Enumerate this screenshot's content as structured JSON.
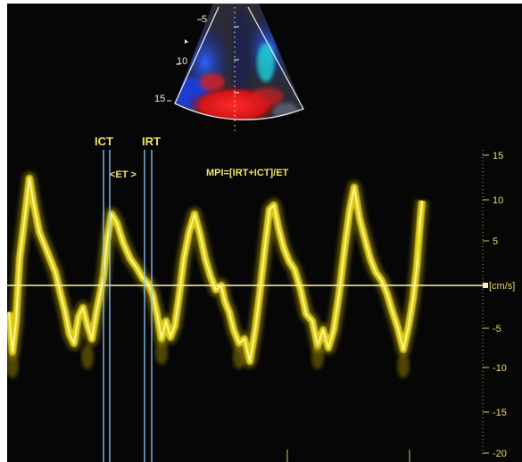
{
  "annotations": {
    "ict": "ICT",
    "irt": "IRT",
    "et": "<ET >",
    "formula": "MPI=[IRT+ICT]/ET"
  },
  "velocity_scale": {
    "unit_label": "[cm/s]",
    "ticks": [
      "15",
      "10",
      "5",
      "-5",
      "-10",
      "-15",
      "-20"
    ]
  },
  "sector_depth_ticks": [
    "5",
    "10",
    "15"
  ],
  "colors": {
    "background": "#060606",
    "doppler": "#f2e21a",
    "annotation": "#f1e36a",
    "marker_lines": "#8ec8ff",
    "baseline": "#fff6b0"
  }
}
